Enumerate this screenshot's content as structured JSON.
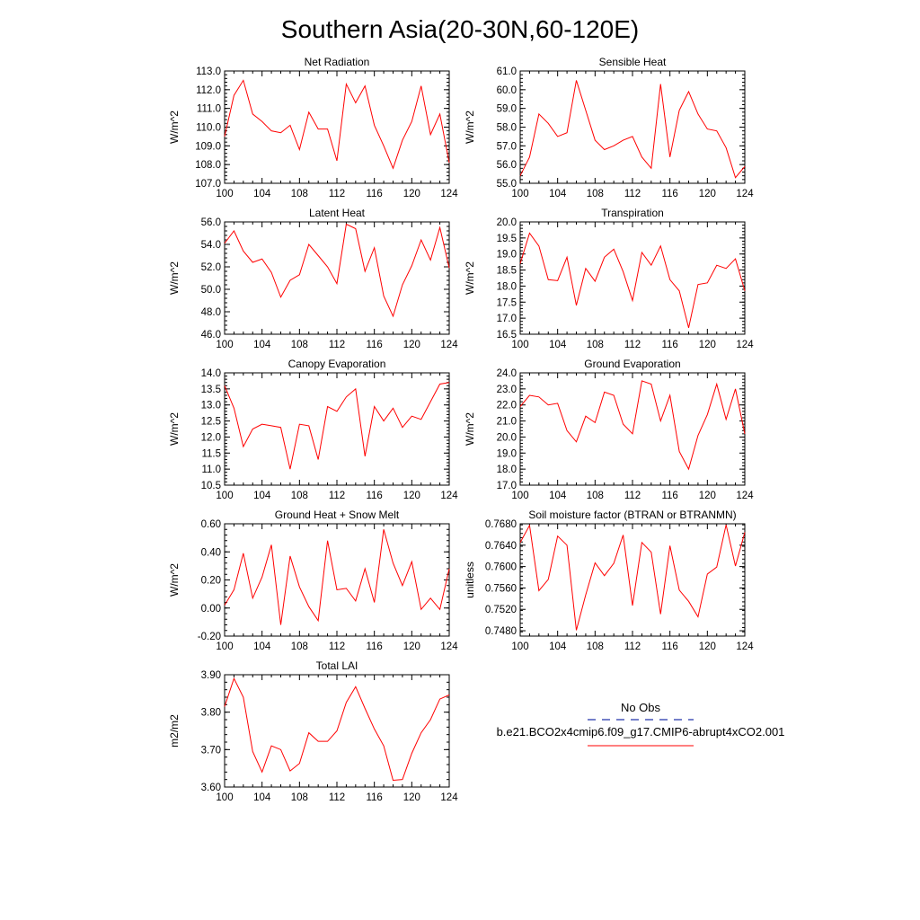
{
  "title": "Southern Asia(20-30N,60-120E)",
  "colors": {
    "model_line": "#ff0000",
    "obs_line": "#2233aa",
    "axis": "#000000"
  },
  "legend": {
    "obs_label": "No Obs",
    "model_label": "b.e21.BCO2x4cmip6.f09_g17.CMIP6-abrupt4xCO2.001"
  },
  "chart_data": [
    {
      "type": "line",
      "title": "Net Radiation",
      "ylabel": "W/m^2",
      "xlim": [
        100,
        124
      ],
      "ylim": [
        107,
        113
      ],
      "xticks": [
        "100",
        "104",
        "108",
        "112",
        "116",
        "120",
        "124"
      ],
      "yticks": [
        "107.0",
        "108.0",
        "109.0",
        "110.0",
        "111.0",
        "112.0",
        "113.0"
      ],
      "x": [
        100,
        101,
        102,
        103,
        104,
        105,
        106,
        107,
        108,
        109,
        110,
        111,
        112,
        113,
        114,
        115,
        116,
        117,
        118,
        119,
        120,
        121,
        122,
        123,
        124
      ],
      "series": [
        {
          "values": [
            109.5,
            111.7,
            112.5,
            110.7,
            110.3,
            109.8,
            109.7,
            110.1,
            108.8,
            110.8,
            109.9,
            109.9,
            108.2,
            112.3,
            111.3,
            112.2,
            110.1,
            109.0,
            107.8,
            109.3,
            110.3,
            112.2,
            109.6,
            110.7,
            108.1
          ]
        }
      ]
    },
    {
      "type": "line",
      "title": "Sensible Heat",
      "ylabel": "W/m^2",
      "xlim": [
        100,
        124
      ],
      "ylim": [
        55,
        61
      ],
      "xticks": [
        "100",
        "104",
        "108",
        "112",
        "116",
        "120",
        "124"
      ],
      "yticks": [
        "55.0",
        "56.0",
        "57.0",
        "58.0",
        "59.0",
        "60.0",
        "61.0"
      ],
      "x": [
        100,
        101,
        102,
        103,
        104,
        105,
        106,
        107,
        108,
        109,
        110,
        111,
        112,
        113,
        114,
        115,
        116,
        117,
        118,
        119,
        120,
        121,
        122,
        123,
        124
      ],
      "series": [
        {
          "values": [
            55.4,
            56.4,
            58.7,
            58.2,
            57.5,
            57.7,
            60.5,
            58.9,
            57.3,
            56.8,
            57.0,
            57.3,
            57.5,
            56.4,
            55.8,
            60.3,
            56.4,
            58.9,
            59.9,
            58.7,
            57.9,
            57.8,
            56.9,
            55.3,
            55.9
          ]
        }
      ]
    },
    {
      "type": "line",
      "title": "Latent Heat",
      "ylabel": "W/m^2",
      "xlim": [
        100,
        124
      ],
      "ylim": [
        46,
        56
      ],
      "xticks": [
        "100",
        "104",
        "108",
        "112",
        "116",
        "120",
        "124"
      ],
      "yticks": [
        "46.0",
        "48.0",
        "50.0",
        "52.0",
        "54.0",
        "56.0"
      ],
      "x": [
        100,
        101,
        102,
        103,
        104,
        105,
        106,
        107,
        108,
        109,
        110,
        111,
        112,
        113,
        114,
        115,
        116,
        117,
        118,
        119,
        120,
        121,
        122,
        123,
        124
      ],
      "series": [
        {
          "values": [
            54.1,
            55.2,
            53.4,
            52.4,
            52.7,
            51.5,
            49.3,
            50.8,
            51.3,
            54.0,
            53.0,
            52.0,
            50.5,
            55.8,
            55.4,
            51.6,
            53.7,
            49.4,
            47.6,
            50.4,
            52.1,
            54.4,
            52.6,
            55.5,
            51.9
          ]
        }
      ]
    },
    {
      "type": "line",
      "title": "Transpiration",
      "ylabel": "W/m^2",
      "xlim": [
        100,
        124
      ],
      "ylim": [
        16.5,
        20
      ],
      "xticks": [
        "100",
        "104",
        "108",
        "112",
        "116",
        "120",
        "124"
      ],
      "yticks": [
        "16.5",
        "17.0",
        "17.5",
        "18.0",
        "18.5",
        "19.0",
        "19.5",
        "20.0"
      ],
      "x": [
        100,
        101,
        102,
        103,
        104,
        105,
        106,
        107,
        108,
        109,
        110,
        111,
        112,
        113,
        114,
        115,
        116,
        117,
        118,
        119,
        120,
        121,
        122,
        123,
        124
      ],
      "series": [
        {
          "values": [
            18.7,
            19.65,
            19.25,
            18.2,
            18.17,
            18.9,
            17.4,
            18.55,
            18.15,
            18.9,
            19.15,
            18.45,
            17.55,
            19.05,
            18.65,
            19.25,
            18.2,
            17.85,
            16.7,
            18.05,
            18.1,
            18.65,
            18.55,
            18.85,
            17.85
          ]
        }
      ]
    },
    {
      "type": "line",
      "title": "Canopy Evaporation",
      "ylabel": "W/m^2",
      "xlim": [
        100,
        124
      ],
      "ylim": [
        10.5,
        14
      ],
      "xticks": [
        "100",
        "104",
        "108",
        "112",
        "116",
        "120",
        "124"
      ],
      "yticks": [
        "10.5",
        "11.0",
        "11.5",
        "12.0",
        "12.5",
        "13.0",
        "13.5",
        "14.0"
      ],
      "x": [
        100,
        101,
        102,
        103,
        104,
        105,
        106,
        107,
        108,
        109,
        110,
        111,
        112,
        113,
        114,
        115,
        116,
        117,
        118,
        119,
        120,
        121,
        122,
        123,
        124
      ],
      "series": [
        {
          "values": [
            13.6,
            12.9,
            11.7,
            12.25,
            12.4,
            12.35,
            12.3,
            11.0,
            12.4,
            12.35,
            11.3,
            12.95,
            12.8,
            13.25,
            13.5,
            11.4,
            12.95,
            12.5,
            12.9,
            12.3,
            12.65,
            12.55,
            13.1,
            13.65,
            13.7
          ]
        }
      ]
    },
    {
      "type": "line",
      "title": "Ground Evaporation",
      "ylabel": "W/m^2",
      "xlim": [
        100,
        124
      ],
      "ylim": [
        17,
        24
      ],
      "xticks": [
        "100",
        "104",
        "108",
        "112",
        "116",
        "120",
        "124"
      ],
      "yticks": [
        "17.0",
        "18.0",
        "19.0",
        "20.0",
        "21.0",
        "22.0",
        "23.0",
        "24.0"
      ],
      "x": [
        100,
        101,
        102,
        103,
        104,
        105,
        106,
        107,
        108,
        109,
        110,
        111,
        112,
        113,
        114,
        115,
        116,
        117,
        118,
        119,
        120,
        121,
        122,
        123,
        124
      ],
      "series": [
        {
          "values": [
            21.9,
            22.6,
            22.5,
            22.0,
            22.1,
            20.4,
            19.7,
            21.3,
            20.9,
            22.8,
            22.6,
            20.8,
            20.2,
            23.5,
            23.3,
            21.0,
            22.6,
            19.1,
            18.0,
            20.1,
            21.4,
            23.3,
            21.1,
            23.0,
            20.2
          ]
        }
      ]
    },
    {
      "type": "line",
      "title": "Ground Heat + Snow Melt",
      "ylabel": "W/m^2",
      "xlim": [
        100,
        124
      ],
      "ylim": [
        -0.2,
        0.6
      ],
      "xticks": [
        "100",
        "104",
        "108",
        "112",
        "116",
        "120",
        "124"
      ],
      "yticks": [
        "-0.20",
        "0.00",
        "0.20",
        "0.40",
        "0.60"
      ],
      "x": [
        100,
        101,
        102,
        103,
        104,
        105,
        106,
        107,
        108,
        109,
        110,
        111,
        112,
        113,
        114,
        115,
        116,
        117,
        118,
        119,
        120,
        121,
        122,
        123,
        124
      ],
      "series": [
        {
          "values": [
            0.02,
            0.13,
            0.39,
            0.07,
            0.22,
            0.45,
            -0.12,
            0.37,
            0.15,
            0.01,
            -0.09,
            0.48,
            0.13,
            0.14,
            0.05,
            0.28,
            0.04,
            0.56,
            0.32,
            0.16,
            0.33,
            -0.01,
            0.07,
            -0.01,
            0.28
          ]
        }
      ]
    },
    {
      "type": "line",
      "title": "Soil moisture factor (BTRAN or BTRANMN)",
      "ylabel": "unitless",
      "xlim": [
        100,
        124
      ],
      "ylim": [
        0.747,
        0.768
      ],
      "xticks": [
        "100",
        "104",
        "108",
        "112",
        "116",
        "120",
        "124"
      ],
      "yticks": [
        "0.7480",
        "0.7520",
        "0.7560",
        "0.7600",
        "0.7640",
        "0.7680"
      ],
      "x": [
        100,
        101,
        102,
        103,
        104,
        105,
        106,
        107,
        108,
        109,
        110,
        111,
        112,
        113,
        114,
        115,
        116,
        117,
        118,
        119,
        120,
        121,
        122,
        123,
        124
      ],
      "series": [
        {
          "values": [
            0.7645,
            0.7677,
            0.7555,
            0.7576,
            0.7657,
            0.764,
            0.7481,
            0.7547,
            0.7607,
            0.7583,
            0.7606,
            0.7659,
            0.7527,
            0.7645,
            0.7627,
            0.7511,
            0.7639,
            0.7556,
            0.7535,
            0.7506,
            0.7586,
            0.7599,
            0.7678,
            0.7601,
            0.7664
          ]
        }
      ]
    },
    {
      "type": "line",
      "title": "Total LAI",
      "ylabel": "m2/m2",
      "xlim": [
        100,
        124
      ],
      "ylim": [
        3.6,
        3.9
      ],
      "xticks": [
        "100",
        "104",
        "108",
        "112",
        "116",
        "120",
        "124"
      ],
      "yticks": [
        "3.60",
        "3.70",
        "3.80",
        "3.90"
      ],
      "x": [
        100,
        101,
        102,
        103,
        104,
        105,
        106,
        107,
        108,
        109,
        110,
        111,
        112,
        113,
        114,
        115,
        116,
        117,
        118,
        119,
        120,
        121,
        122,
        123,
        124
      ],
      "series": [
        {
          "values": [
            3.815,
            3.89,
            3.84,
            3.695,
            3.64,
            3.71,
            3.7,
            3.643,
            3.663,
            3.745,
            3.722,
            3.722,
            3.75,
            3.826,
            3.868,
            3.81,
            3.755,
            3.71,
            3.618,
            3.62,
            3.69,
            3.745,
            3.78,
            3.835,
            3.846
          ]
        }
      ]
    }
  ]
}
